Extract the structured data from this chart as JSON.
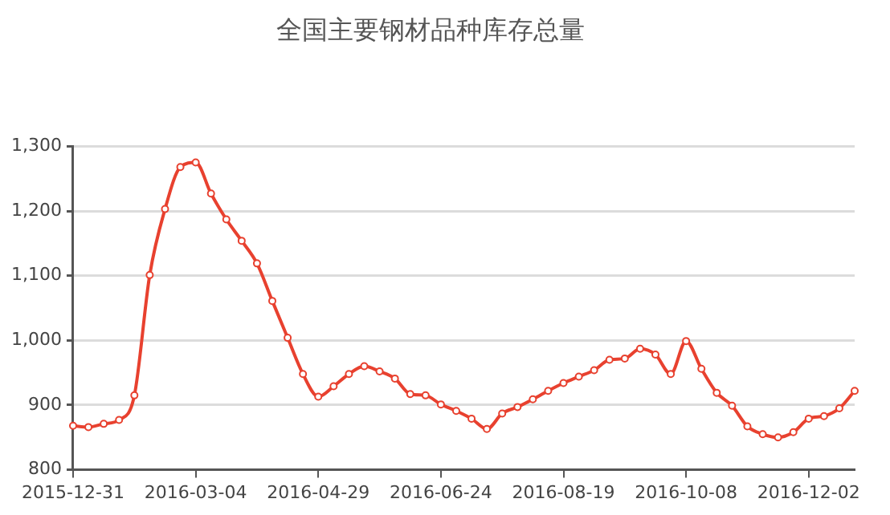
{
  "chart_data": {
    "type": "line",
    "title": "全国主要钢材品种库存总量",
    "categories": [
      "2015-12-31",
      null,
      null,
      null,
      null,
      null,
      null,
      null,
      "2016-03-04",
      null,
      null,
      null,
      null,
      null,
      null,
      null,
      "2016-04-29",
      null,
      null,
      null,
      null,
      null,
      null,
      null,
      "2016-06-24",
      null,
      null,
      null,
      null,
      null,
      null,
      null,
      "2016-08-19",
      null,
      null,
      null,
      null,
      null,
      null,
      null,
      "2016-10-08",
      null,
      null,
      null,
      null,
      null,
      null,
      null,
      "2016-12-02",
      null,
      null,
      null
    ],
    "series": [
      {
        "color": "#e8412f",
        "values": [
          868,
          866,
          871,
          877,
          915,
          1101,
          1203,
          1268,
          1275,
          1227,
          1187,
          1154,
          1119,
          1061,
          1004,
          948,
          913,
          929,
          948,
          960,
          952,
          941,
          917,
          915,
          901,
          891,
          879,
          863,
          887,
          897,
          909,
          922,
          934,
          944,
          954,
          970,
          972,
          987,
          978,
          948,
          999,
          956,
          919,
          899,
          867,
          855,
          850,
          858,
          879,
          883,
          895,
          922
        ]
      }
    ],
    "ylim": [
      800,
      1300
    ],
    "yticks": [
      {
        "value": 800,
        "label": "800"
      },
      {
        "value": 900,
        "label": "900"
      },
      {
        "value": 1000,
        "label": "1,000"
      },
      {
        "value": 1100,
        "label": "1,100"
      },
      {
        "value": 1200,
        "label": "1,200"
      },
      {
        "value": 1300,
        "label": "1,300"
      }
    ],
    "grid": "y",
    "marker": "circle",
    "line_style": "solid"
  }
}
